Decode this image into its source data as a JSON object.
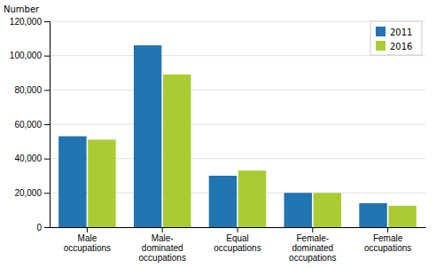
{
  "chart_data": {
    "type": "bar",
    "y_label": "Number",
    "categories": [
      "Male\noccupations",
      "Male-\ndominated\noccupations",
      "Equal\noccupations",
      "Female-\ndominated\noccupations",
      "Female\noccupations"
    ],
    "series": [
      {
        "name": "2011",
        "color": "#2175B0",
        "values": [
          53000,
          106000,
          30000,
          20000,
          14000
        ]
      },
      {
        "name": "2016",
        "color": "#AACC33",
        "values": [
          51000,
          89000,
          33000,
          20000,
          12500
        ]
      }
    ],
    "ylim": [
      0,
      120000
    ],
    "yticks": [
      0,
      {
        "value": 20000,
        "label": "20,000"
      },
      {
        "value": 40000,
        "label": "40,000"
      },
      {
        "value": 60000,
        "label": "60,000"
      },
      {
        "value": 80000,
        "label": "80,000"
      },
      {
        "value": 100000,
        "label": "100,000"
      },
      {
        "value": 120000,
        "label": "120,000"
      }
    ],
    "grid": true,
    "legend": "upper right"
  }
}
